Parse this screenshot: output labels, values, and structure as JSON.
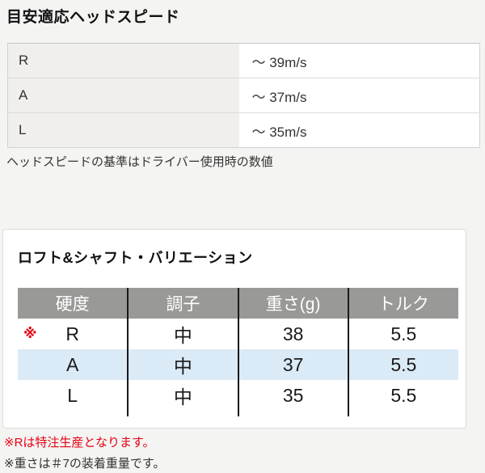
{
  "head_speed": {
    "title": "目安適応ヘッドスピード",
    "rows": [
      {
        "label": "R",
        "value": "～ 39m/s"
      },
      {
        "label": "A",
        "value": "～ 37m/s"
      },
      {
        "label": "L",
        "value": "～ 35m/s"
      }
    ],
    "note": "ヘッドスピードの基準はドライバー使用時の数値"
  },
  "variation": {
    "title": "ロフト&シャフト・バリエーション",
    "headers": [
      "硬度",
      "調子",
      "重さ(g)",
      "トルク"
    ],
    "rows": [
      {
        "mark": "※",
        "hardness": "R",
        "flex": "中",
        "weight": "38",
        "torque": "5.5"
      },
      {
        "mark": "",
        "hardness": "A",
        "flex": "中",
        "weight": "37",
        "torque": "5.5"
      },
      {
        "mark": "",
        "hardness": "L",
        "flex": "中",
        "weight": "35",
        "torque": "5.5"
      }
    ],
    "notes": {
      "custom_order": "※Rは特注生産となります。",
      "weight_basis": "※重さは＃7の装着重量です。"
    }
  },
  "colors": {
    "page_bg": "#f4f4f3",
    "card_bg": "#ffffff",
    "table_header_bg": "#999997",
    "alt_row_bg": "#daeaf7",
    "label_cell_bg": "#f0efee",
    "note_red": "#e60012"
  }
}
